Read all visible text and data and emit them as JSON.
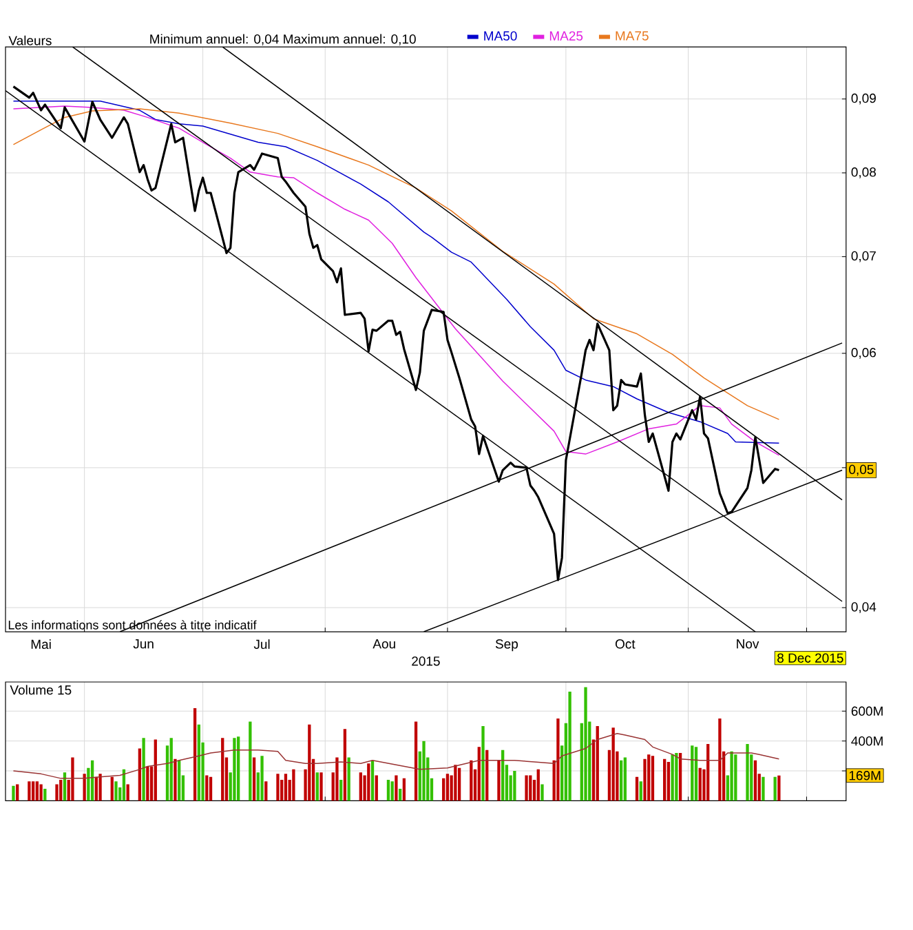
{
  "chart_data": [
    {
      "type": "line",
      "legend_title": "Valeurs",
      "legend": "top",
      "log": "y",
      "grid": true,
      "xlabel": "2015",
      "xlim": [
        "2015-05-12",
        "2015-12-11"
      ],
      "ylim": [
        0.0385,
        0.0978
      ],
      "xticks": [
        {
          "value": "2015-05-21",
          "label": "Mai"
        },
        {
          "value": "2015-06-01",
          "label": null
        },
        {
          "value": "2015-06-16",
          "label": "Jun"
        },
        {
          "value": "2015-07-01",
          "label": null
        },
        {
          "value": "2015-07-16",
          "label": "Jul"
        },
        {
          "value": "2015-08-01",
          "label": null
        },
        {
          "value": "2015-08-16",
          "label": "Aou"
        },
        {
          "value": "2015-09-01",
          "label": null
        },
        {
          "value": "2015-09-16",
          "label": "Sep"
        },
        {
          "value": "2015-10-01",
          "label": null
        },
        {
          "value": "2015-10-16",
          "label": "Oct"
        },
        {
          "value": "2015-11-01",
          "label": null
        },
        {
          "value": "2015-11-16",
          "label": "Nov"
        },
        {
          "value": "2015-12-01",
          "label": null
        }
      ],
      "yticks": [
        {
          "value": 0.04,
          "label": "0,04"
        },
        {
          "value": 0.05,
          "label": null
        },
        {
          "value": 0.06,
          "label": "0,06"
        },
        {
          "value": 0.07,
          "label": "0,07"
        },
        {
          "value": 0.08,
          "label": "0,08"
        },
        {
          "value": 0.09,
          "label": "0,09"
        }
      ],
      "annotations": [
        "Minimum annuel: 0,04 Maximum annuel: 0,10",
        "Les informations sont données à titre indicatif",
        "8 Dec 2015",
        "0,05"
      ],
      "series": [
        {
          "color": "#000000",
          "x": [
            "2015-05-14",
            "2015-05-18",
            "2015-05-19",
            "2015-05-21",
            "2015-05-22",
            "2015-05-26",
            "2015-05-27",
            "2015-06-01",
            "2015-06-03",
            "2015-06-05",
            "2015-06-08",
            "2015-06-11",
            "2015-06-12",
            "2015-06-15",
            "2015-06-16",
            "2015-06-17",
            "2015-06-18",
            "2015-06-19",
            "2015-06-23",
            "2015-06-24",
            "2015-06-26",
            "2015-06-29",
            "2015-06-30",
            "2015-07-01",
            "2015-07-02",
            "2015-07-03",
            "2015-07-07",
            "2015-07-08",
            "2015-07-09",
            "2015-07-10",
            "2015-07-13",
            "2015-07-14",
            "2015-07-16",
            "2015-07-20",
            "2015-07-21",
            "2015-07-22",
            "2015-07-24",
            "2015-07-27",
            "2015-07-28",
            "2015-07-29",
            "2015-07-30",
            "2015-07-31",
            "2015-08-03",
            "2015-08-04",
            "2015-08-05",
            "2015-08-06",
            "2015-08-10",
            "2015-08-11",
            "2015-08-12",
            "2015-08-13",
            "2015-08-14",
            "2015-08-17",
            "2015-08-18",
            "2015-08-19",
            "2015-08-20",
            "2015-08-21",
            "2015-08-24",
            "2015-08-25",
            "2015-08-26",
            "2015-08-28",
            "2015-08-31",
            "2015-09-01",
            "2015-09-02",
            "2015-09-04",
            "2015-09-07",
            "2015-09-08",
            "2015-09-09",
            "2015-09-10",
            "2015-09-14",
            "2015-09-15",
            "2015-09-17",
            "2015-09-18",
            "2015-09-21",
            "2015-09-22",
            "2015-09-23",
            "2015-09-24",
            "2015-09-28",
            "2015-09-29",
            "2015-09-30",
            "2015-10-01",
            "2015-10-05",
            "2015-10-06",
            "2015-10-07",
            "2015-10-08",
            "2015-10-09",
            "2015-10-12",
            "2015-10-13",
            "2015-10-14",
            "2015-10-15",
            "2015-10-16",
            "2015-10-19",
            "2015-10-20",
            "2015-10-21",
            "2015-10-22",
            "2015-10-23",
            "2015-10-27",
            "2015-10-28",
            "2015-10-29",
            "2015-10-30",
            "2015-11-02",
            "2015-11-03",
            "2015-11-04",
            "2015-11-05",
            "2015-11-06",
            "2015-11-09",
            "2015-11-11",
            "2015-11-12",
            "2015-11-16",
            "2015-11-17",
            "2015-11-18",
            "2015-11-20",
            "2015-11-23",
            "2015-11-24"
          ],
          "values": [
            0.0918,
            0.0902,
            0.0909,
            0.0884,
            0.0892,
            0.0859,
            0.0888,
            0.0841,
            0.0896,
            0.0871,
            0.0846,
            0.0874,
            0.0865,
            0.0801,
            0.081,
            0.0792,
            0.0778,
            0.0781,
            0.0865,
            0.084,
            0.0846,
            0.0753,
            0.0778,
            0.0794,
            0.0775,
            0.0775,
            0.0704,
            0.071,
            0.0775,
            0.0801,
            0.081,
            0.0804,
            0.0825,
            0.0819,
            0.0795,
            0.0789,
            0.0775,
            0.0758,
            0.0726,
            0.071,
            0.0713,
            0.0697,
            0.0684,
            0.0672,
            0.0687,
            0.0638,
            0.064,
            0.0634,
            0.0602,
            0.0623,
            0.0622,
            0.0632,
            0.0632,
            0.0618,
            0.0621,
            0.0604,
            0.0566,
            0.0582,
            0.0622,
            0.0643,
            0.0641,
            0.0613,
            0.0601,
            0.0577,
            0.054,
            0.0534,
            0.0511,
            0.0526,
            0.0489,
            0.0498,
            0.0504,
            0.0501,
            0.05,
            0.0486,
            0.0482,
            0.0477,
            0.045,
            0.0418,
            0.0433,
            0.0506,
            0.0581,
            0.0603,
            0.0613,
            0.0603,
            0.0629,
            0.0603,
            0.0548,
            0.0552,
            0.0575,
            0.0571,
            0.0569,
            0.0581,
            0.0544,
            0.0521,
            0.0528,
            0.0482,
            0.0521,
            0.0528,
            0.0523,
            0.0548,
            0.054,
            0.056,
            0.0528,
            0.0524,
            0.048,
            0.0465,
            0.0466,
            0.0484,
            0.0498,
            0.0525,
            0.0488,
            0.0499,
            0.0498
          ]
        },
        {
          "name": "MA50",
          "color": "#0000cc",
          "x": [
            "2015-05-14",
            "2015-06-01",
            "2015-06-05",
            "2015-06-15",
            "2015-06-19",
            "2015-06-25",
            "2015-07-01",
            "2015-07-08",
            "2015-07-15",
            "2015-07-22",
            "2015-07-30",
            "2015-08-10",
            "2015-08-17",
            "2015-08-26",
            "2015-08-28",
            "2015-09-02",
            "2015-09-07",
            "2015-09-16",
            "2015-09-22",
            "2015-09-28",
            "2015-10-01",
            "2015-10-06",
            "2015-10-13",
            "2015-10-19",
            "2015-10-27",
            "2015-11-04",
            "2015-11-11",
            "2015-11-13",
            "2015-11-24"
          ],
          "values": [
            0.0897,
            0.0897,
            0.0897,
            0.0884,
            0.0871,
            0.0865,
            0.0862,
            0.0851,
            0.084,
            0.0834,
            0.0816,
            0.0786,
            0.0764,
            0.0728,
            0.0722,
            0.0705,
            0.0694,
            0.0654,
            0.0626,
            0.0603,
            0.0584,
            0.0575,
            0.0569,
            0.0558,
            0.0546,
            0.0538,
            0.0528,
            0.0521,
            0.052
          ]
        },
        {
          "name": "MA25",
          "color": "#e020e0",
          "x": [
            "2015-05-14",
            "2015-05-27",
            "2015-06-03",
            "2015-06-11",
            "2015-06-17",
            "2015-06-25",
            "2015-07-01",
            "2015-07-08",
            "2015-07-13",
            "2015-07-20",
            "2015-07-24",
            "2015-07-30",
            "2015-08-06",
            "2015-08-12",
            "2015-08-18",
            "2015-08-24",
            "2015-09-03",
            "2015-09-15",
            "2015-09-28",
            "2015-10-01",
            "2015-10-06",
            "2015-10-14",
            "2015-10-22",
            "2015-10-29",
            "2015-11-04",
            "2015-11-09",
            "2015-11-12",
            "2015-11-18",
            "2015-11-24"
          ],
          "values": [
            0.0886,
            0.089,
            0.0888,
            0.0884,
            0.0874,
            0.0859,
            0.084,
            0.0819,
            0.0801,
            0.0795,
            0.0794,
            0.0775,
            0.0755,
            0.0742,
            0.0715,
            0.0677,
            0.0624,
            0.0574,
            0.053,
            0.0513,
            0.0511,
            0.0521,
            0.0532,
            0.0536,
            0.0552,
            0.055,
            0.0536,
            0.0521,
            0.051
          ]
        },
        {
          "name": "MA75",
          "color": "#e8781e",
          "x": [
            "2015-05-14",
            "2015-05-21",
            "2015-05-27",
            "2015-06-03",
            "2015-06-15",
            "2015-06-25",
            "2015-07-08",
            "2015-07-20",
            "2015-07-30",
            "2015-08-12",
            "2015-08-24",
            "2015-09-02",
            "2015-09-15",
            "2015-09-28",
            "2015-10-08",
            "2015-10-19",
            "2015-10-28",
            "2015-11-05",
            "2015-11-16",
            "2015-11-24"
          ],
          "values": [
            0.0837,
            0.0857,
            0.0874,
            0.0883,
            0.0886,
            0.088,
            0.0866,
            0.0852,
            0.0834,
            0.081,
            0.0781,
            0.0753,
            0.0706,
            0.067,
            0.0634,
            0.0619,
            0.0599,
            0.0577,
            0.0552,
            0.054
          ]
        },
        {
          "color": "#000000",
          "x": [
            "2015-05-12",
            "2015-11-18"
          ],
          "values": [
            0.0912,
            0.0385
          ]
        },
        {
          "color": "#000000",
          "x": [
            "2015-05-29",
            "2015-12-10"
          ],
          "values": [
            0.0978,
            0.0404
          ]
        },
        {
          "color": "#000000",
          "x": [
            "2015-07-06",
            "2015-12-10"
          ],
          "values": [
            0.0978,
            0.0475
          ]
        },
        {
          "color": "#000000",
          "x": [
            "2015-06-10",
            "2015-12-10"
          ],
          "values": [
            0.0385,
            0.061
          ]
        },
        {
          "color": "#000000",
          "x": [
            "2015-08-26",
            "2015-12-10"
          ],
          "values": [
            0.0385,
            0.0498
          ]
        }
      ]
    },
    {
      "type": "bar",
      "title": "Volume 15",
      "grid": true,
      "tick_labels": "y",
      "xlim": [
        "2015-05-12",
        "2015-12-11"
      ],
      "ylim": [
        0,
        795
      ],
      "xticks": [
        {
          "value": "2015-06-01",
          "label": null
        },
        {
          "value": "2015-07-01",
          "label": null
        },
        {
          "value": "2015-08-01",
          "label": null
        },
        {
          "value": "2015-09-01",
          "label": null
        },
        {
          "value": "2015-10-01",
          "label": null
        },
        {
          "value": "2015-11-01",
          "label": null
        },
        {
          "value": "2015-12-01",
          "label": null
        }
      ],
      "yticks": [
        {
          "value": 200,
          "label": null
        },
        {
          "value": 400,
          "label": "400M"
        },
        {
          "value": 600,
          "label": "600M"
        }
      ],
      "annotations": [
        "169M"
      ],
      "series": [
        {
          "x": [
            "2015-05-14",
            "2015-05-15",
            "2015-05-18",
            "2015-05-19",
            "2015-05-20",
            "2015-05-21",
            "2015-05-22",
            "2015-05-25",
            "2015-05-26",
            "2015-05-27",
            "2015-05-28",
            "2015-05-29",
            "2015-06-01",
            "2015-06-02",
            "2015-06-03",
            "2015-06-04",
            "2015-06-05",
            "2015-06-08",
            "2015-06-09",
            "2015-06-10",
            "2015-06-11",
            "2015-06-12",
            "2015-06-15",
            "2015-06-16",
            "2015-06-17",
            "2015-06-18",
            "2015-06-19",
            "2015-06-22",
            "2015-06-23",
            "2015-06-24",
            "2015-06-25",
            "2015-06-26",
            "2015-06-29",
            "2015-06-30",
            "2015-07-01",
            "2015-07-02",
            "2015-07-03",
            "2015-07-06",
            "2015-07-07",
            "2015-07-08",
            "2015-07-09",
            "2015-07-10",
            "2015-07-13",
            "2015-07-14",
            "2015-07-15",
            "2015-07-16",
            "2015-07-17",
            "2015-07-20",
            "2015-07-21",
            "2015-07-22",
            "2015-07-23",
            "2015-07-24",
            "2015-07-27",
            "2015-07-28",
            "2015-07-29",
            "2015-07-30",
            "2015-07-31",
            "2015-08-03",
            "2015-08-04",
            "2015-08-05",
            "2015-08-06",
            "2015-08-07",
            "2015-08-10",
            "2015-08-11",
            "2015-08-12",
            "2015-08-13",
            "2015-08-14",
            "2015-08-17",
            "2015-08-18",
            "2015-08-19",
            "2015-08-20",
            "2015-08-21",
            "2015-08-24",
            "2015-08-25",
            "2015-08-26",
            "2015-08-27",
            "2015-08-28",
            "2015-08-31",
            "2015-09-01",
            "2015-09-02",
            "2015-09-03",
            "2015-09-04",
            "2015-09-07",
            "2015-09-08",
            "2015-09-09",
            "2015-09-10",
            "2015-09-11",
            "2015-09-14",
            "2015-09-15",
            "2015-09-16",
            "2015-09-17",
            "2015-09-18",
            "2015-09-21",
            "2015-09-22",
            "2015-09-23",
            "2015-09-24",
            "2015-09-25",
            "2015-09-28",
            "2015-09-29",
            "2015-09-30",
            "2015-10-01",
            "2015-10-02",
            "2015-10-05",
            "2015-10-06",
            "2015-10-07",
            "2015-10-08",
            "2015-10-09",
            "2015-10-12",
            "2015-10-13",
            "2015-10-14",
            "2015-10-15",
            "2015-10-16",
            "2015-10-19",
            "2015-10-20",
            "2015-10-21",
            "2015-10-22",
            "2015-10-23",
            "2015-10-26",
            "2015-10-27",
            "2015-10-28",
            "2015-10-29",
            "2015-10-30",
            "2015-11-02",
            "2015-11-03",
            "2015-11-04",
            "2015-11-05",
            "2015-11-06",
            "2015-11-09",
            "2015-11-10",
            "2015-11-11",
            "2015-11-12",
            "2015-11-13",
            "2015-11-16",
            "2015-11-17",
            "2015-11-18",
            "2015-11-19",
            "2015-11-20",
            "2015-11-23",
            "2015-11-24"
          ],
          "values": [
            100,
            110,
            130,
            130,
            130,
            110,
            80,
            110,
            140,
            190,
            140,
            290,
            180,
            220,
            270,
            160,
            180,
            160,
            130,
            90,
            210,
            110,
            350,
            420,
            230,
            230,
            410,
            370,
            420,
            280,
            270,
            170,
            620,
            510,
            390,
            170,
            160,
            420,
            290,
            190,
            420,
            430,
            530,
            290,
            190,
            300,
            130,
            180,
            140,
            180,
            140,
            210,
            210,
            510,
            280,
            190,
            190,
            190,
            290,
            140,
            480,
            290,
            190,
            170,
            250,
            270,
            170,
            140,
            130,
            170,
            80,
            150,
            530,
            330,
            400,
            290,
            150,
            150,
            180,
            170,
            240,
            220,
            270,
            210,
            360,
            500,
            340,
            270,
            340,
            240,
            170,
            200,
            170,
            170,
            140,
            210,
            110,
            270,
            550,
            370,
            520,
            730,
            520,
            760,
            530,
            410,
            500,
            340,
            490,
            330,
            270,
            290,
            160,
            130,
            280,
            310,
            300,
            280,
            260,
            310,
            320,
            320,
            370,
            360,
            220,
            210,
            380,
            550,
            330,
            170,
            330,
            310,
            380,
            310,
            270,
            180,
            160,
            160,
            169
          ],
          "colors": [
            "#33c000",
            "#c00000",
            "#c00000",
            "#c00000",
            "#c00000",
            "#c00000",
            "#33c000",
            "#c00000",
            "#c00000",
            "#33c000",
            "#c00000",
            "#c00000",
            "#c00000",
            "#33c000",
            "#33c000",
            "#c00000",
            "#c00000",
            "#c00000",
            "#33c000",
            "#33c000",
            "#33c000",
            "#c00000",
            "#c00000",
            "#33c000",
            "#c00000",
            "#c00000",
            "#c00000",
            "#33c000",
            "#33c000",
            "#c00000",
            "#33c000",
            "#33c000",
            "#c00000",
            "#33c000",
            "#33c000",
            "#c00000",
            "#c00000",
            "#c00000",
            "#c00000",
            "#33c000",
            "#33c000",
            "#33c000",
            "#33c000",
            "#c00000",
            "#33c000",
            "#33c000",
            "#c00000",
            "#c00000",
            "#c00000",
            "#c00000",
            "#c00000",
            "#c00000",
            "#c00000",
            "#c00000",
            "#c00000",
            "#33c000",
            "#c00000",
            "#c00000",
            "#c00000",
            "#33c000",
            "#c00000",
            "#33c000",
            "#c00000",
            "#c00000",
            "#c00000",
            "#33c000",
            "#c00000",
            "#33c000",
            "#33c000",
            "#c00000",
            "#33c000",
            "#c00000",
            "#c00000",
            "#33c000",
            "#33c000",
            "#33c000",
            "#33c000",
            "#c00000",
            "#c00000",
            "#c00000",
            "#c00000",
            "#c00000",
            "#c00000",
            "#c00000",
            "#c00000",
            "#33c000",
            "#c00000",
            "#c00000",
            "#33c000",
            "#33c000",
            "#33c000",
            "#33c000",
            "#c00000",
            "#c00000",
            "#c00000",
            "#c00000",
            "#33c000",
            "#c00000",
            "#c00000",
            "#33c000",
            "#33c000",
            "#33c000",
            "#33c000",
            "#33c000",
            "#33c000",
            "#c00000",
            "#c00000",
            "#c00000",
            "#c00000",
            "#c00000",
            "#33c000",
            "#33c000",
            "#c00000",
            "#33c000",
            "#c00000",
            "#c00000",
            "#c00000",
            "#c00000",
            "#c00000",
            "#33c000",
            "#33c000",
            "#c00000",
            "#33c000",
            "#33c000",
            "#c00000",
            "#c00000",
            "#c00000",
            "#c00000",
            "#c00000",
            "#33c000",
            "#33c000",
            "#33c000",
            "#33c000",
            "#33c000",
            "#c00000",
            "#c00000",
            "#33c000",
            "#33c000",
            "#c00000"
          ]
        },
        {
          "type": "line",
          "color": "#993333",
          "x": [
            "2015-05-14",
            "2015-05-21",
            "2015-05-26",
            "2015-06-01",
            "2015-06-05",
            "2015-06-10",
            "2015-06-15",
            "2015-06-17",
            "2015-06-22",
            "2015-06-25",
            "2015-06-30",
            "2015-07-03",
            "2015-07-09",
            "2015-07-15",
            "2015-07-20",
            "2015-07-22",
            "2015-07-27",
            "2015-07-30",
            "2015-08-05",
            "2015-08-10",
            "2015-08-13",
            "2015-08-19",
            "2015-08-25",
            "2015-09-01",
            "2015-09-09",
            "2015-09-15",
            "2015-09-18",
            "2015-09-23",
            "2015-09-28",
            "2015-09-30",
            "2015-10-06",
            "2015-10-09",
            "2015-10-14",
            "2015-10-16",
            "2015-10-21",
            "2015-10-23",
            "2015-10-28",
            "2015-10-30",
            "2015-11-04",
            "2015-11-09",
            "2015-11-11",
            "2015-11-17",
            "2015-11-19",
            "2015-11-24"
          ],
          "values": [
            200,
            180,
            150,
            150,
            160,
            170,
            210,
            230,
            250,
            270,
            300,
            320,
            340,
            340,
            330,
            270,
            250,
            250,
            260,
            250,
            270,
            240,
            210,
            220,
            270,
            270,
            270,
            260,
            250,
            300,
            350,
            410,
            450,
            440,
            410,
            360,
            310,
            280,
            270,
            270,
            320,
            320,
            310,
            280
          ]
        }
      ]
    }
  ]
}
